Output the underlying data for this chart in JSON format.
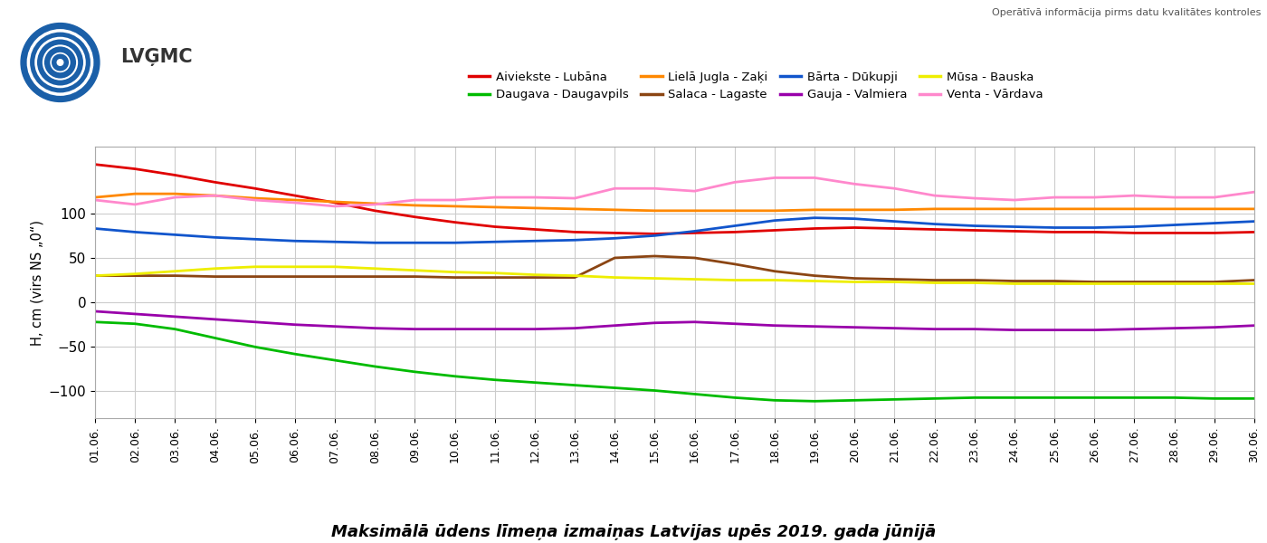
{
  "title": "Maksimālā ūdens līmeņa izmaiņas Latvijas upēs 2019. gada jūnijā",
  "ylabel": "H, cm (virs NS „0“)",
  "subtitle": "Operātīvā informācija pirms datu kvalitātes kontroles",
  "days": [
    1,
    2,
    3,
    4,
    5,
    6,
    7,
    8,
    9,
    10,
    11,
    12,
    13,
    14,
    15,
    16,
    17,
    18,
    19,
    20,
    21,
    22,
    23,
    24,
    25,
    26,
    27,
    28,
    29,
    30
  ],
  "series": [
    {
      "name": "Aiviekste - Lubāna",
      "color": "#e00000",
      "data": [
        155,
        150,
        143,
        135,
        128,
        120,
        112,
        103,
        96,
        90,
        85,
        82,
        79,
        78,
        77,
        78,
        79,
        81,
        83,
        84,
        83,
        82,
        81,
        80,
        79,
        79,
        78,
        78,
        78,
        79
      ]
    },
    {
      "name": "Daugava - Daugavpils",
      "color": "#00bb00",
      "data": [
        -22,
        -24,
        -30,
        -40,
        -50,
        -58,
        -65,
        -72,
        -78,
        -83,
        -87,
        -90,
        -93,
        -96,
        -99,
        -103,
        -107,
        -110,
        -111,
        -110,
        -109,
        -108,
        -107,
        -107,
        -107,
        -107,
        -107,
        -107,
        -108,
        -108
      ]
    },
    {
      "name": "Lielā Jugla - Zaķi",
      "color": "#ff8800",
      "data": [
        118,
        122,
        122,
        120,
        117,
        115,
        113,
        111,
        109,
        108,
        107,
        106,
        105,
        104,
        103,
        103,
        103,
        103,
        104,
        104,
        104,
        105,
        105,
        105,
        105,
        105,
        105,
        105,
        105,
        105
      ]
    },
    {
      "name": "Salaca - Lagaste",
      "color": "#8B4513",
      "data": [
        30,
        30,
        30,
        29,
        29,
        29,
        29,
        29,
        29,
        28,
        28,
        28,
        28,
        50,
        52,
        50,
        43,
        35,
        30,
        27,
        26,
        25,
        25,
        24,
        24,
        23,
        23,
        23,
        23,
        25
      ]
    },
    {
      "name": "Bārta - Dūkupji",
      "color": "#1155cc",
      "data": [
        83,
        79,
        76,
        73,
        71,
        69,
        68,
        67,
        67,
        67,
        68,
        69,
        70,
        72,
        75,
        80,
        86,
        92,
        95,
        94,
        91,
        88,
        86,
        85,
        84,
        84,
        85,
        87,
        89,
        91
      ]
    },
    {
      "name": "Gauja - Valmiera",
      "color": "#9900aa",
      "data": [
        -10,
        -13,
        -16,
        -19,
        -22,
        -25,
        -27,
        -29,
        -30,
        -30,
        -30,
        -30,
        -29,
        -26,
        -23,
        -22,
        -24,
        -26,
        -27,
        -28,
        -29,
        -30,
        -30,
        -31,
        -31,
        -31,
        -30,
        -29,
        -28,
        -26
      ]
    },
    {
      "name": "Mūsa - Bauska",
      "color": "#eeee00",
      "data": [
        30,
        32,
        35,
        38,
        40,
        40,
        40,
        38,
        36,
        34,
        33,
        31,
        30,
        28,
        27,
        26,
        25,
        25,
        24,
        23,
        23,
        22,
        22,
        21,
        21,
        21,
        21,
        21,
        21,
        21
      ]
    },
    {
      "name": "Venta - Vārdava",
      "color": "#ff88cc",
      "data": [
        115,
        110,
        118,
        120,
        115,
        112,
        108,
        110,
        115,
        115,
        118,
        118,
        117,
        128,
        128,
        125,
        135,
        140,
        140,
        133,
        128,
        120,
        117,
        115,
        118,
        118,
        120,
        118,
        118,
        124
      ]
    }
  ],
  "legend_order": [
    0,
    1,
    2,
    3,
    4,
    5,
    6,
    7
  ],
  "ylim": [
    -130,
    175
  ],
  "yticks": [
    -100,
    -50,
    0,
    50,
    100
  ],
  "background_color": "#ffffff",
  "grid_color": "#cccccc"
}
